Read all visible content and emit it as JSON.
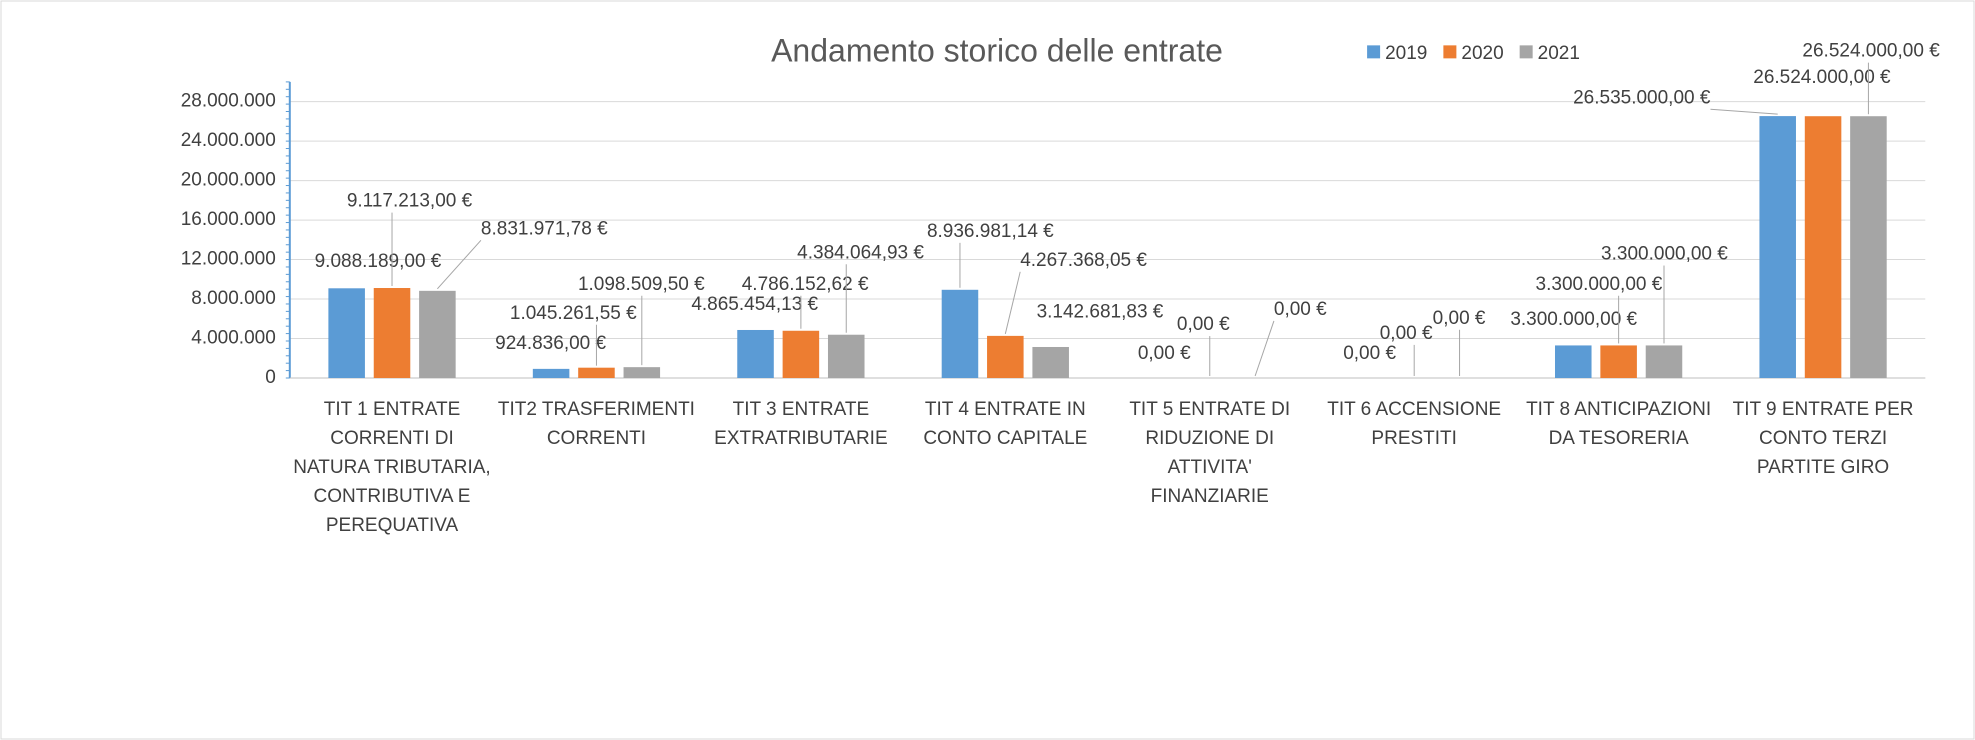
{
  "chart_data": {
    "type": "bar",
    "title": "Andamento storico delle entrate",
    "categories": [
      "TIT 1 ENTRATE CORRENTI DI NATURA TRIBUTARIA, CONTRIBUTIVA E PEREQUATIVA",
      "TIT2 TRASFERIMENTI CORRENTI",
      "TIT 3 ENTRATE EXTRATRIBUTARIE",
      "TIT 4 ENTRATE IN CONTO CAPITALE",
      "TIT 5 ENTRATE DI RIDUZIONE DI ATTIVITA' FINANZIARIE",
      "TIT 6 ACCENSIONE PRESTITI",
      "TIT 8 ANTICIPAZIONI DA TESORERIA",
      "TIT 9 ENTRATE PER CONTO TERZI PARTITE GIRO"
    ],
    "series": [
      {
        "name": "2019",
        "color": "#5b9bd5",
        "values": [
          9088189.0,
          924836.0,
          4865454.13,
          8936981.14,
          0,
          0,
          3300000,
          26535000
        ],
        "value_labels": [
          "9.088.189,00 €",
          "924.836,00 €",
          "4.865.454,13 €",
          "8.936.981,14 €",
          "0,00 €",
          "0,00 €",
          "3.300.000,00 €",
          "26.535.000,00 €"
        ]
      },
      {
        "name": "2020",
        "color": "#ed7d31",
        "values": [
          9117213.0,
          1045261.55,
          4786152.62,
          4267368.05,
          0,
          0,
          3300000,
          26524000
        ],
        "value_labels": [
          "9.117.213,00 €",
          "1.045.261,55 €",
          "4.786.152,62 €",
          "4.267.368,05 €",
          "0,00 €",
          "0,00 €",
          "3.300.000,00 €",
          "26.524.000,00 €"
        ]
      },
      {
        "name": "2021",
        "color": "#a5a5a5",
        "values": [
          8831971.78,
          1098509.5,
          4384064.93,
          3142681.83,
          0,
          0,
          3300000,
          26524000
        ],
        "value_labels": [
          "8.831.971,78 €",
          "1.098.509,50 €",
          "4.384.064,93 €",
          "3.142.681,83 €",
          "0,00 €",
          "0,00 €",
          "3.300.000,00 €",
          "26.524.000,00 €"
        ]
      }
    ],
    "ylim": [
      0,
      30000000
    ],
    "yticks": [
      0,
      {
        "value": 4000000,
        "label": "4.000.000"
      },
      {
        "value": 8000000,
        "label": "8.000.000"
      },
      {
        "value": 12000000,
        "label": "12.000.000"
      },
      {
        "value": 16000000,
        "label": "16.000.000"
      },
      {
        "value": 20000000,
        "label": "20.000.000"
      },
      {
        "value": 24000000,
        "label": "24.000.000"
      },
      {
        "value": 28000000,
        "label": "28.000.000"
      }
    ],
    "grid": true,
    "legend": "top"
  }
}
